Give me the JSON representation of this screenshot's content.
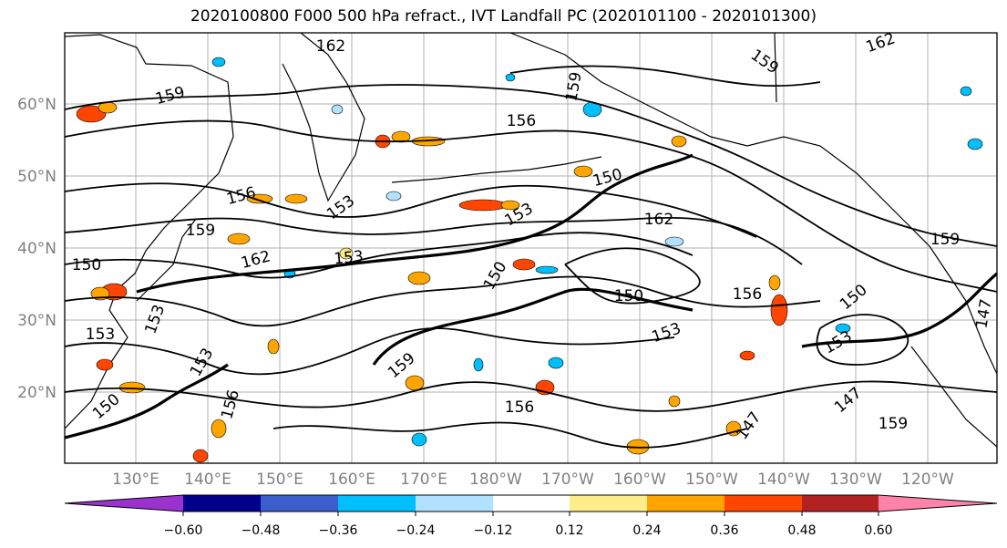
{
  "title": "2020100800 F000 500 hPa refract., IVT Landfall PC (2020101100 - 2020101300)",
  "map": {
    "lat_labels": [
      "60°N",
      "50°N",
      "40°N",
      "30°N",
      "20°N"
    ],
    "lon_labels": [
      "130°E",
      "140°E",
      "150°E",
      "160°E",
      "170°E",
      "180°W",
      "170°W",
      "160°W",
      "150°W",
      "140°W",
      "130°W",
      "120°W"
    ],
    "label_color": "#808080",
    "grid": true
  },
  "contour_labels": [
    "162",
    "162",
    "159",
    "159",
    "159",
    "156",
    "156",
    "156",
    "153",
    "153",
    "153",
    "153",
    "150",
    "150",
    "150",
    "147",
    "147",
    "159",
    "162",
    "156",
    "150",
    "153",
    "153",
    "159",
    "156",
    "159",
    "150",
    "153",
    "147",
    "162",
    "159",
    "153",
    "150"
  ],
  "colorbar": {
    "ticks": [
      "−0.60",
      "−0.48",
      "−0.36",
      "−0.24",
      "−0.12",
      "0.12",
      "0.24",
      "0.36",
      "0.48",
      "0.60"
    ],
    "colors": [
      "#9a32cd",
      "#00008b",
      "#3a5fcd",
      "#00bfff",
      "#b0e2ff",
      "#ffffff",
      "#ffec8b",
      "#ffa500",
      "#ff4500",
      "#b22222",
      "#ff82ab"
    ]
  }
}
